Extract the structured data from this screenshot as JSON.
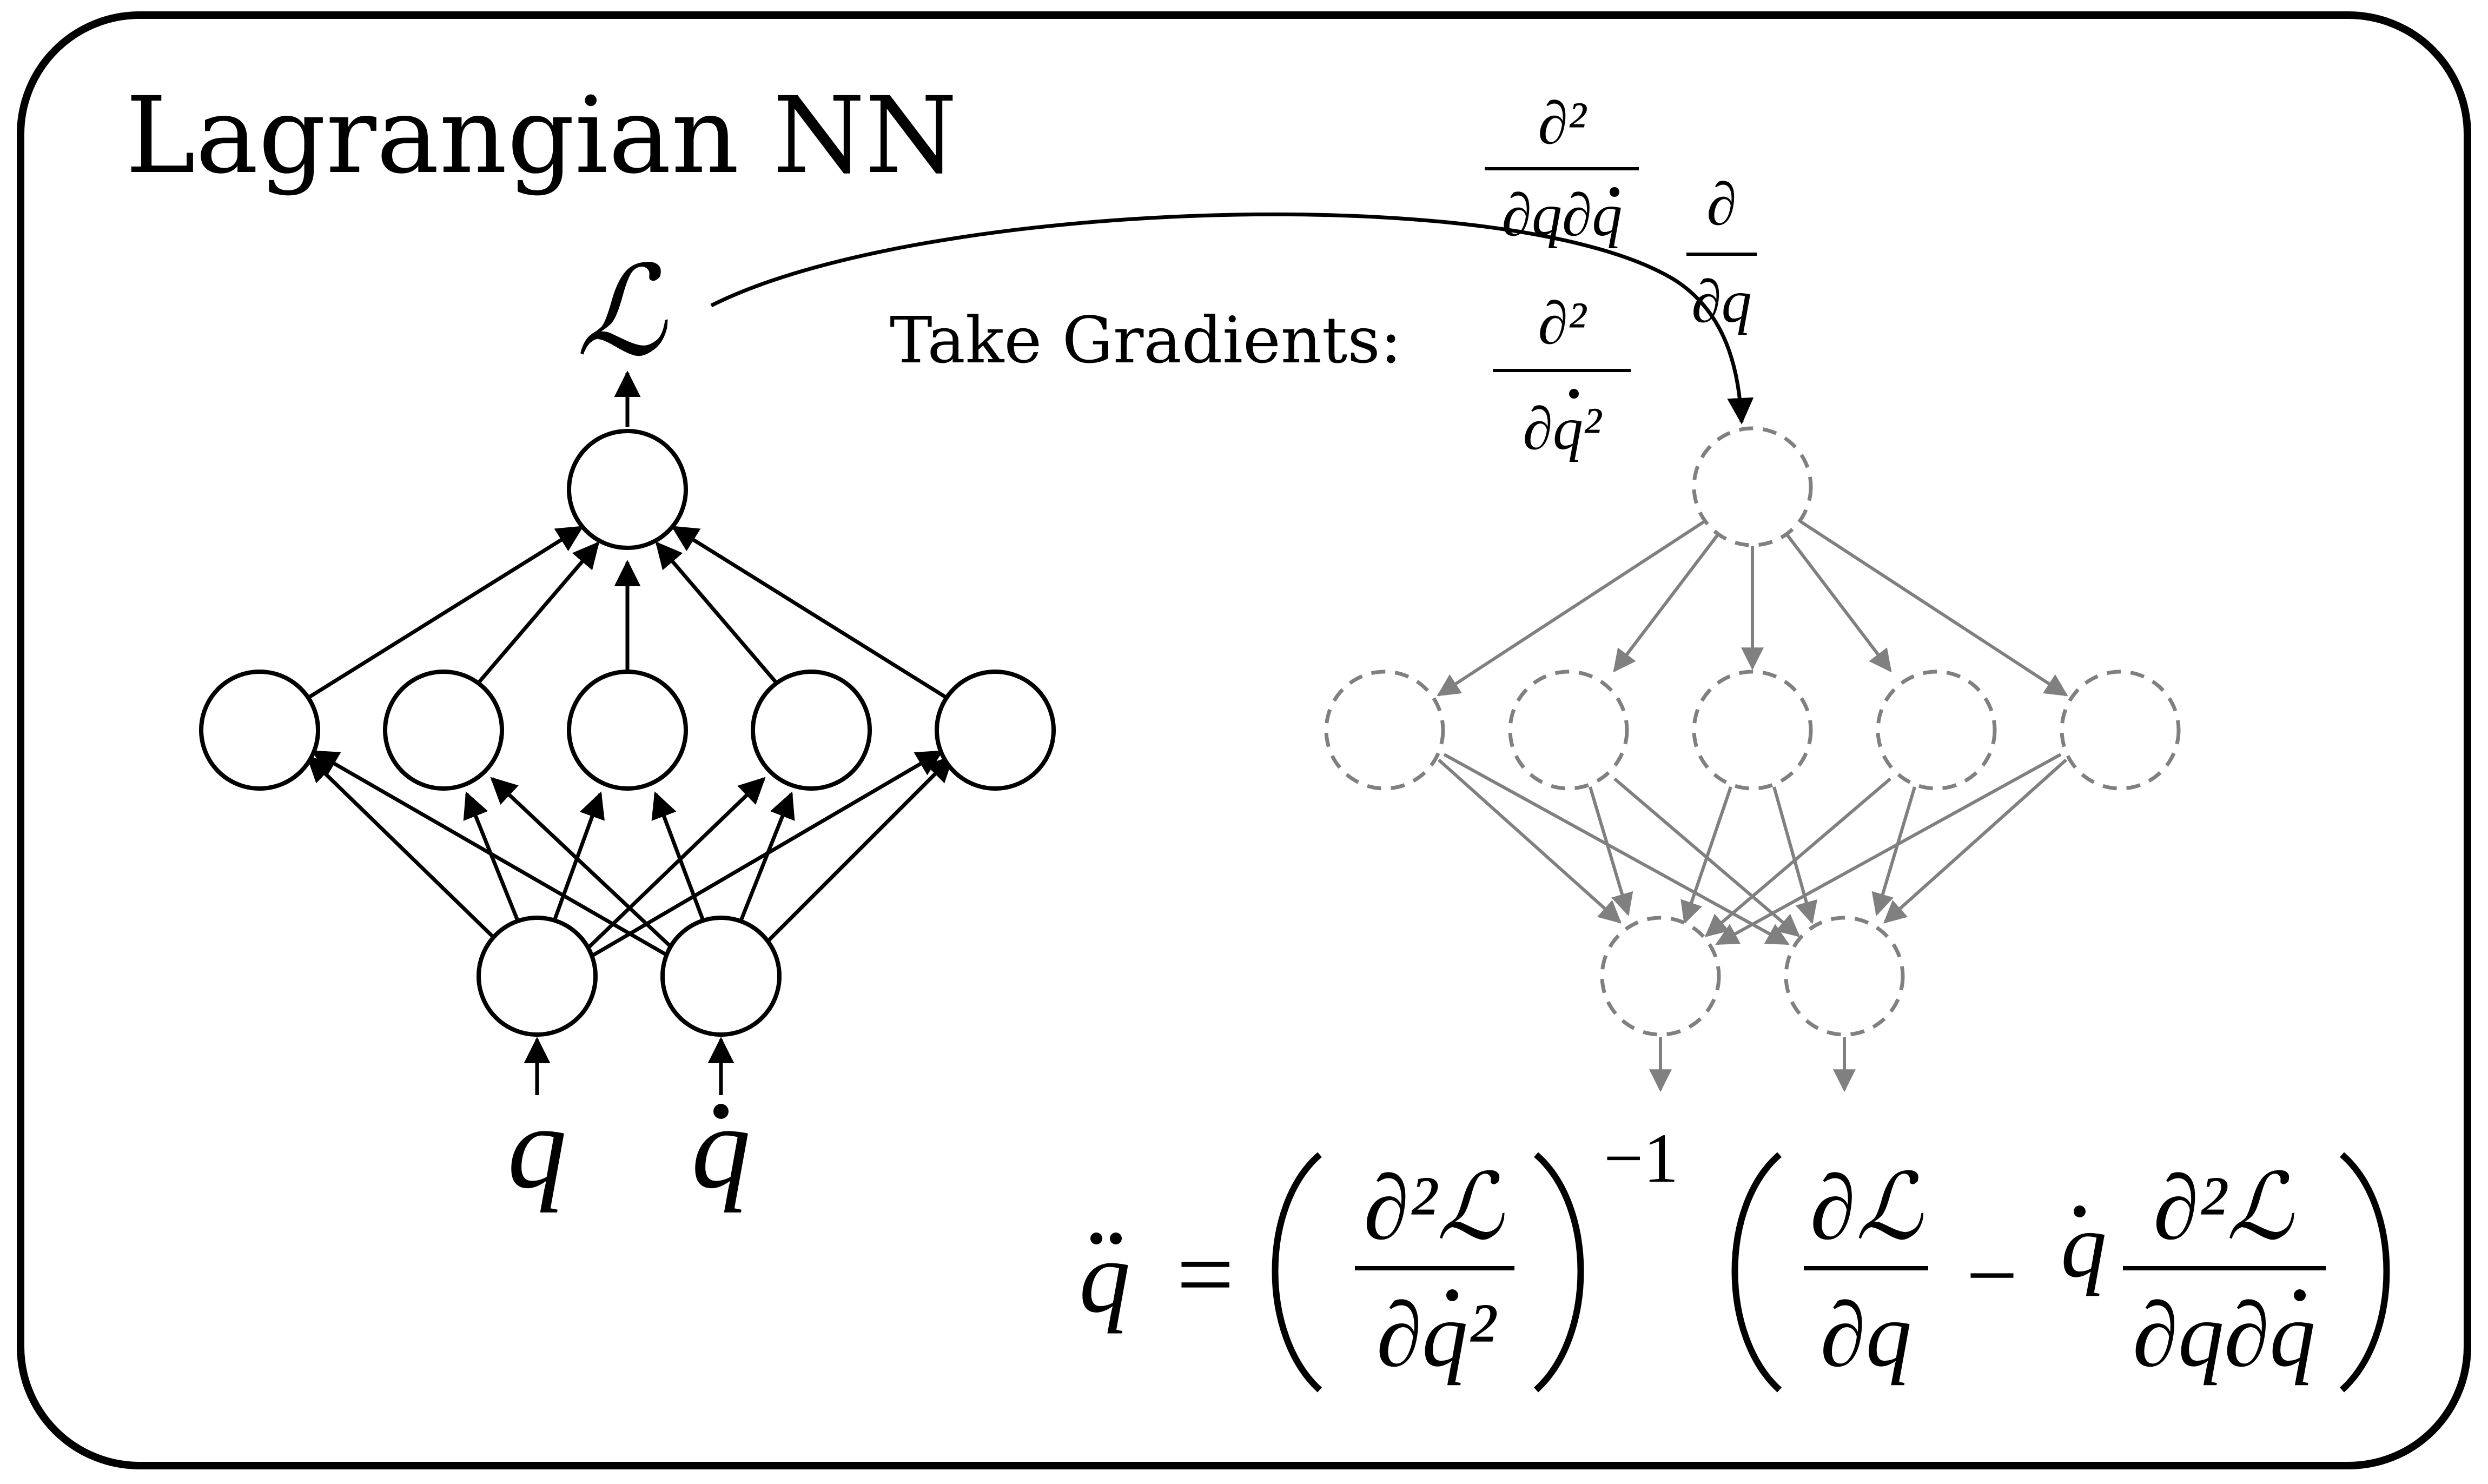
{
  "title": "Lagrangian NN",
  "gradient_label": "Take Gradients:",
  "output_symbol": "ℒ",
  "inputs": {
    "q": "q",
    "qdot": "q"
  },
  "operators": {
    "d2_dq_dqdot": {
      "num": "∂²",
      "den": "∂q∂q"
    },
    "d_dq": {
      "num": "∂",
      "den": "∂q"
    },
    "d2_dqdot2": {
      "num": "∂²",
      "den": "∂q²"
    }
  },
  "equation": {
    "lhs": "q",
    "equals": "=",
    "term1_num": "∂²ℒ",
    "term1_den": "∂q²",
    "exponent": "−1",
    "term2_num": "∂ℒ",
    "term2_den": "∂q",
    "minus": "−",
    "qdot": "q",
    "term3_num": "∂²ℒ",
    "term3_den": "∂q∂q"
  },
  "colors": {
    "forward": "#000000",
    "backward": "#808080",
    "border": "#000000"
  }
}
